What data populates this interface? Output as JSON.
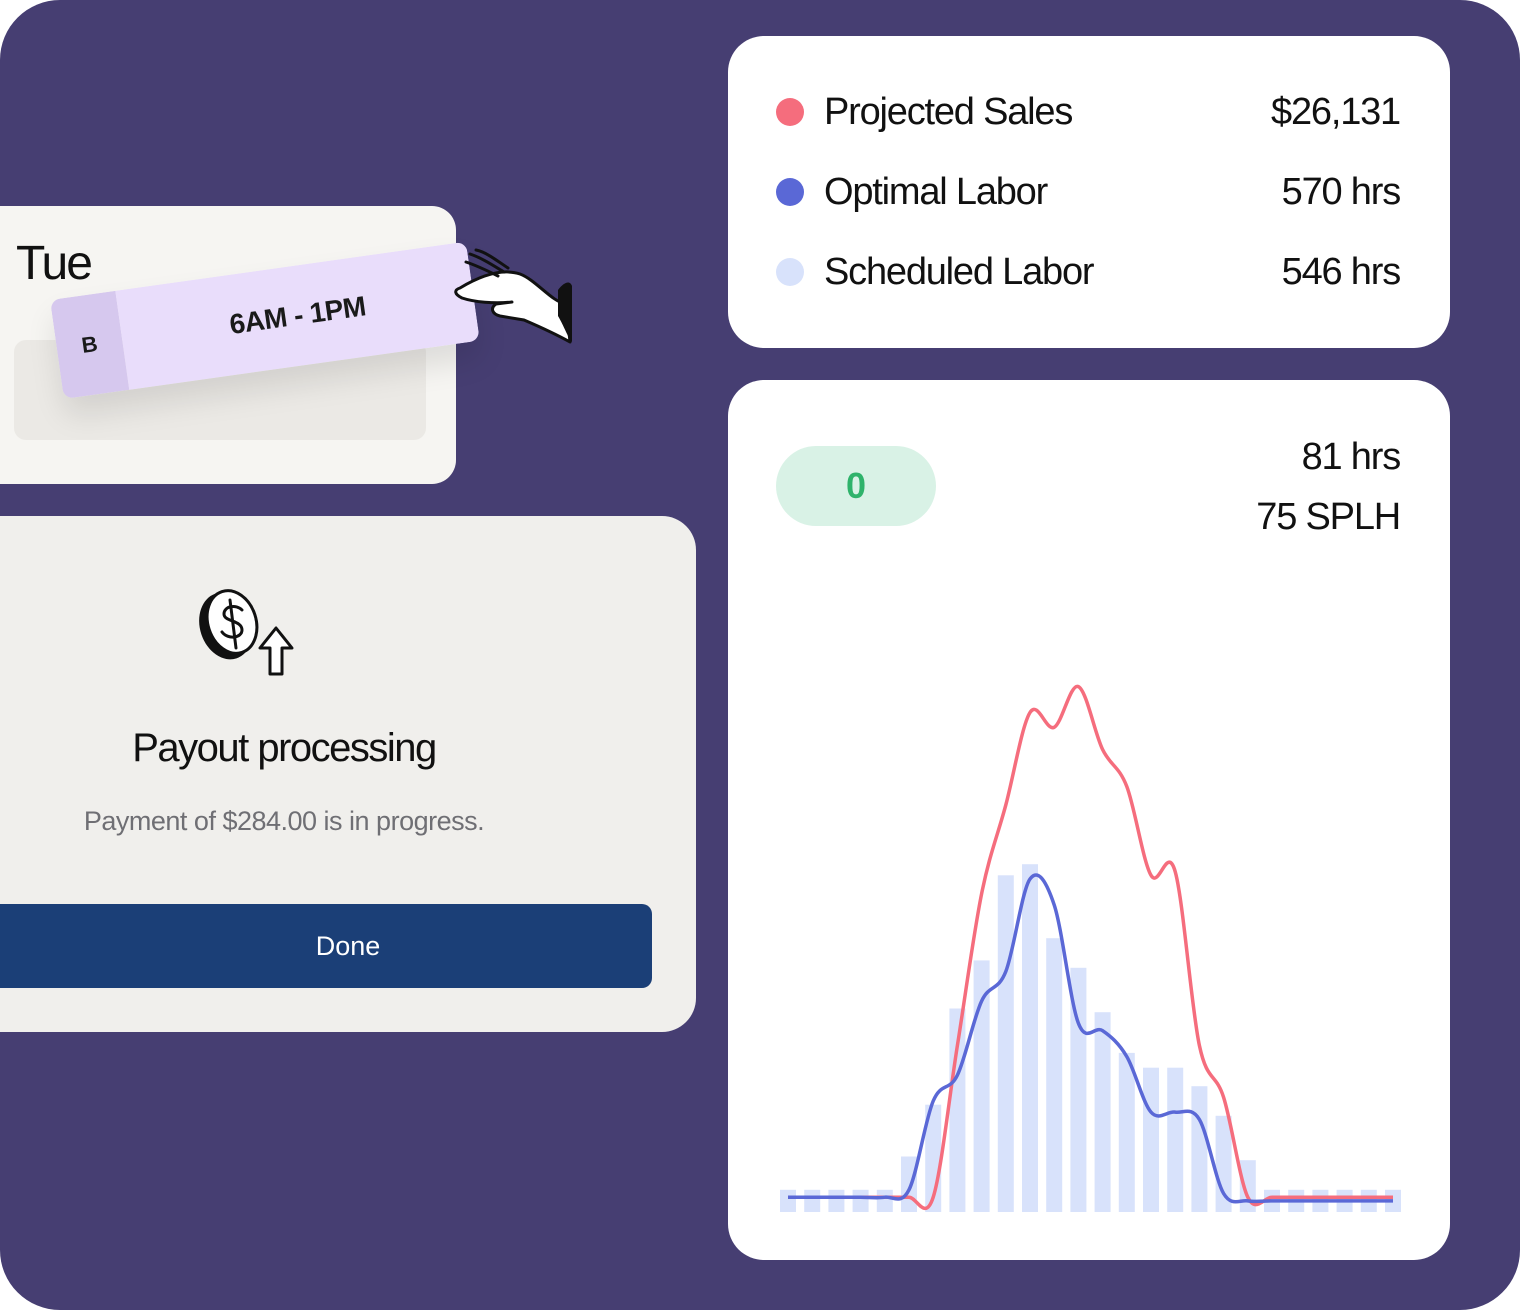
{
  "legend": {
    "items": [
      {
        "label": "Projected Sales",
        "value": "$26,131",
        "color": "#f56d7d"
      },
      {
        "label": "Optimal Labor",
        "value": "570 hrs",
        "color": "#5a68d6"
      },
      {
        "label": "Scheduled Labor",
        "value": "546 hrs",
        "color": "#d8e2fb"
      }
    ]
  },
  "summary": {
    "badge": "0",
    "hours": "81 hrs",
    "splh": "75 SPLH",
    "badge_color": "#2fb36b"
  },
  "schedule": {
    "day": "Tue",
    "shift_tag": "B",
    "shift_time": "6AM - 1PM",
    "hand_icon": "grabbing-hand-icon"
  },
  "payout": {
    "icon": "dollar-coin-upload-icon",
    "title": "Payout processing",
    "message": "Payment of $284.00 is in progress.",
    "button_label": "Done",
    "button_color": "#1b3f77"
  },
  "chart_data": {
    "type": "bar",
    "series": [
      {
        "name": "Scheduled Labor",
        "kind": "bar",
        "color": "#d8e2fb",
        "values": [
          0.6,
          0.6,
          0.6,
          0.6,
          0.6,
          1.5,
          2.9,
          5.5,
          6.8,
          9.1,
          9.4,
          7.4,
          6.6,
          5.4,
          4.3,
          3.9,
          3.9,
          3.4,
          2.6,
          1.4,
          0.6,
          0.6,
          0.6,
          0.6,
          0.6,
          0.6
        ]
      },
      {
        "name": "Projected Sales",
        "kind": "line",
        "color": "#f56d7d",
        "values": [
          0.4,
          0.4,
          0.4,
          0.4,
          0.4,
          0.4,
          0.4,
          4.5,
          8.6,
          11.0,
          13.5,
          13.1,
          14.2,
          12.5,
          11.5,
          9.1,
          9.2,
          4.5,
          3.1,
          0.4,
          0.4,
          0.4,
          0.4,
          0.4,
          0.4,
          0.4
        ]
      },
      {
        "name": "Optimal Labor",
        "kind": "line",
        "color": "#5a68d6",
        "values": [
          0.4,
          0.4,
          0.4,
          0.4,
          0.4,
          0.6,
          3.0,
          3.7,
          5.7,
          6.5,
          9.0,
          8.3,
          5.1,
          4.9,
          4.2,
          2.7,
          2.7,
          2.5,
          0.5,
          0.3,
          0.3,
          0.3,
          0.3,
          0.3,
          0.3,
          0.3
        ]
      }
    ]
  }
}
